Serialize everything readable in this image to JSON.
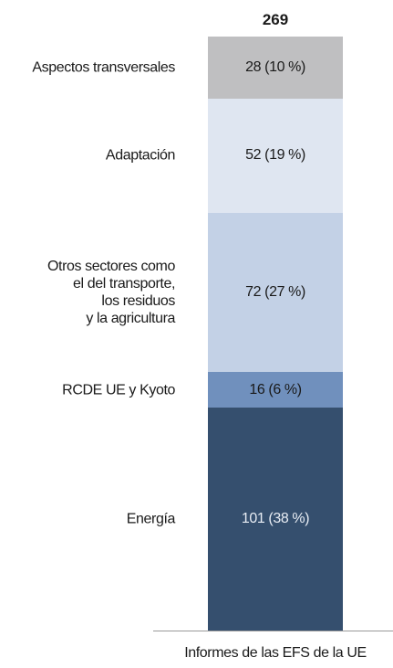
{
  "chart_data": {
    "type": "bar",
    "stacked": true,
    "categories": [
      "Informes de las EFS de la UE"
    ],
    "total": 269,
    "ylim": [
      0,
      269
    ],
    "series": [
      {
        "name": "Energía",
        "color": "#354f6e",
        "values": [
          101
        ],
        "value_labels": [
          "101 (38 %)"
        ]
      },
      {
        "name": "RCDE UE y Kyoto",
        "color": "#7090bd",
        "values": [
          16
        ],
        "value_labels": [
          "16 (6 %)"
        ]
      },
      {
        "name": "Otros sectores como\nel del transporte,\nlos residuos\ny la agricultura",
        "color": "#c3d1e6",
        "values": [
          72
        ],
        "value_labels": [
          "72 (27 %)"
        ]
      },
      {
        "name": "Adaptación",
        "color": "#dfe6f1",
        "values": [
          52
        ],
        "value_labels": [
          "52 (19 %)"
        ]
      },
      {
        "name": "Aspectos transversales",
        "color": "#bfbfc1",
        "values": [
          28
        ],
        "value_labels": [
          "28 (10 %)"
        ]
      }
    ]
  }
}
